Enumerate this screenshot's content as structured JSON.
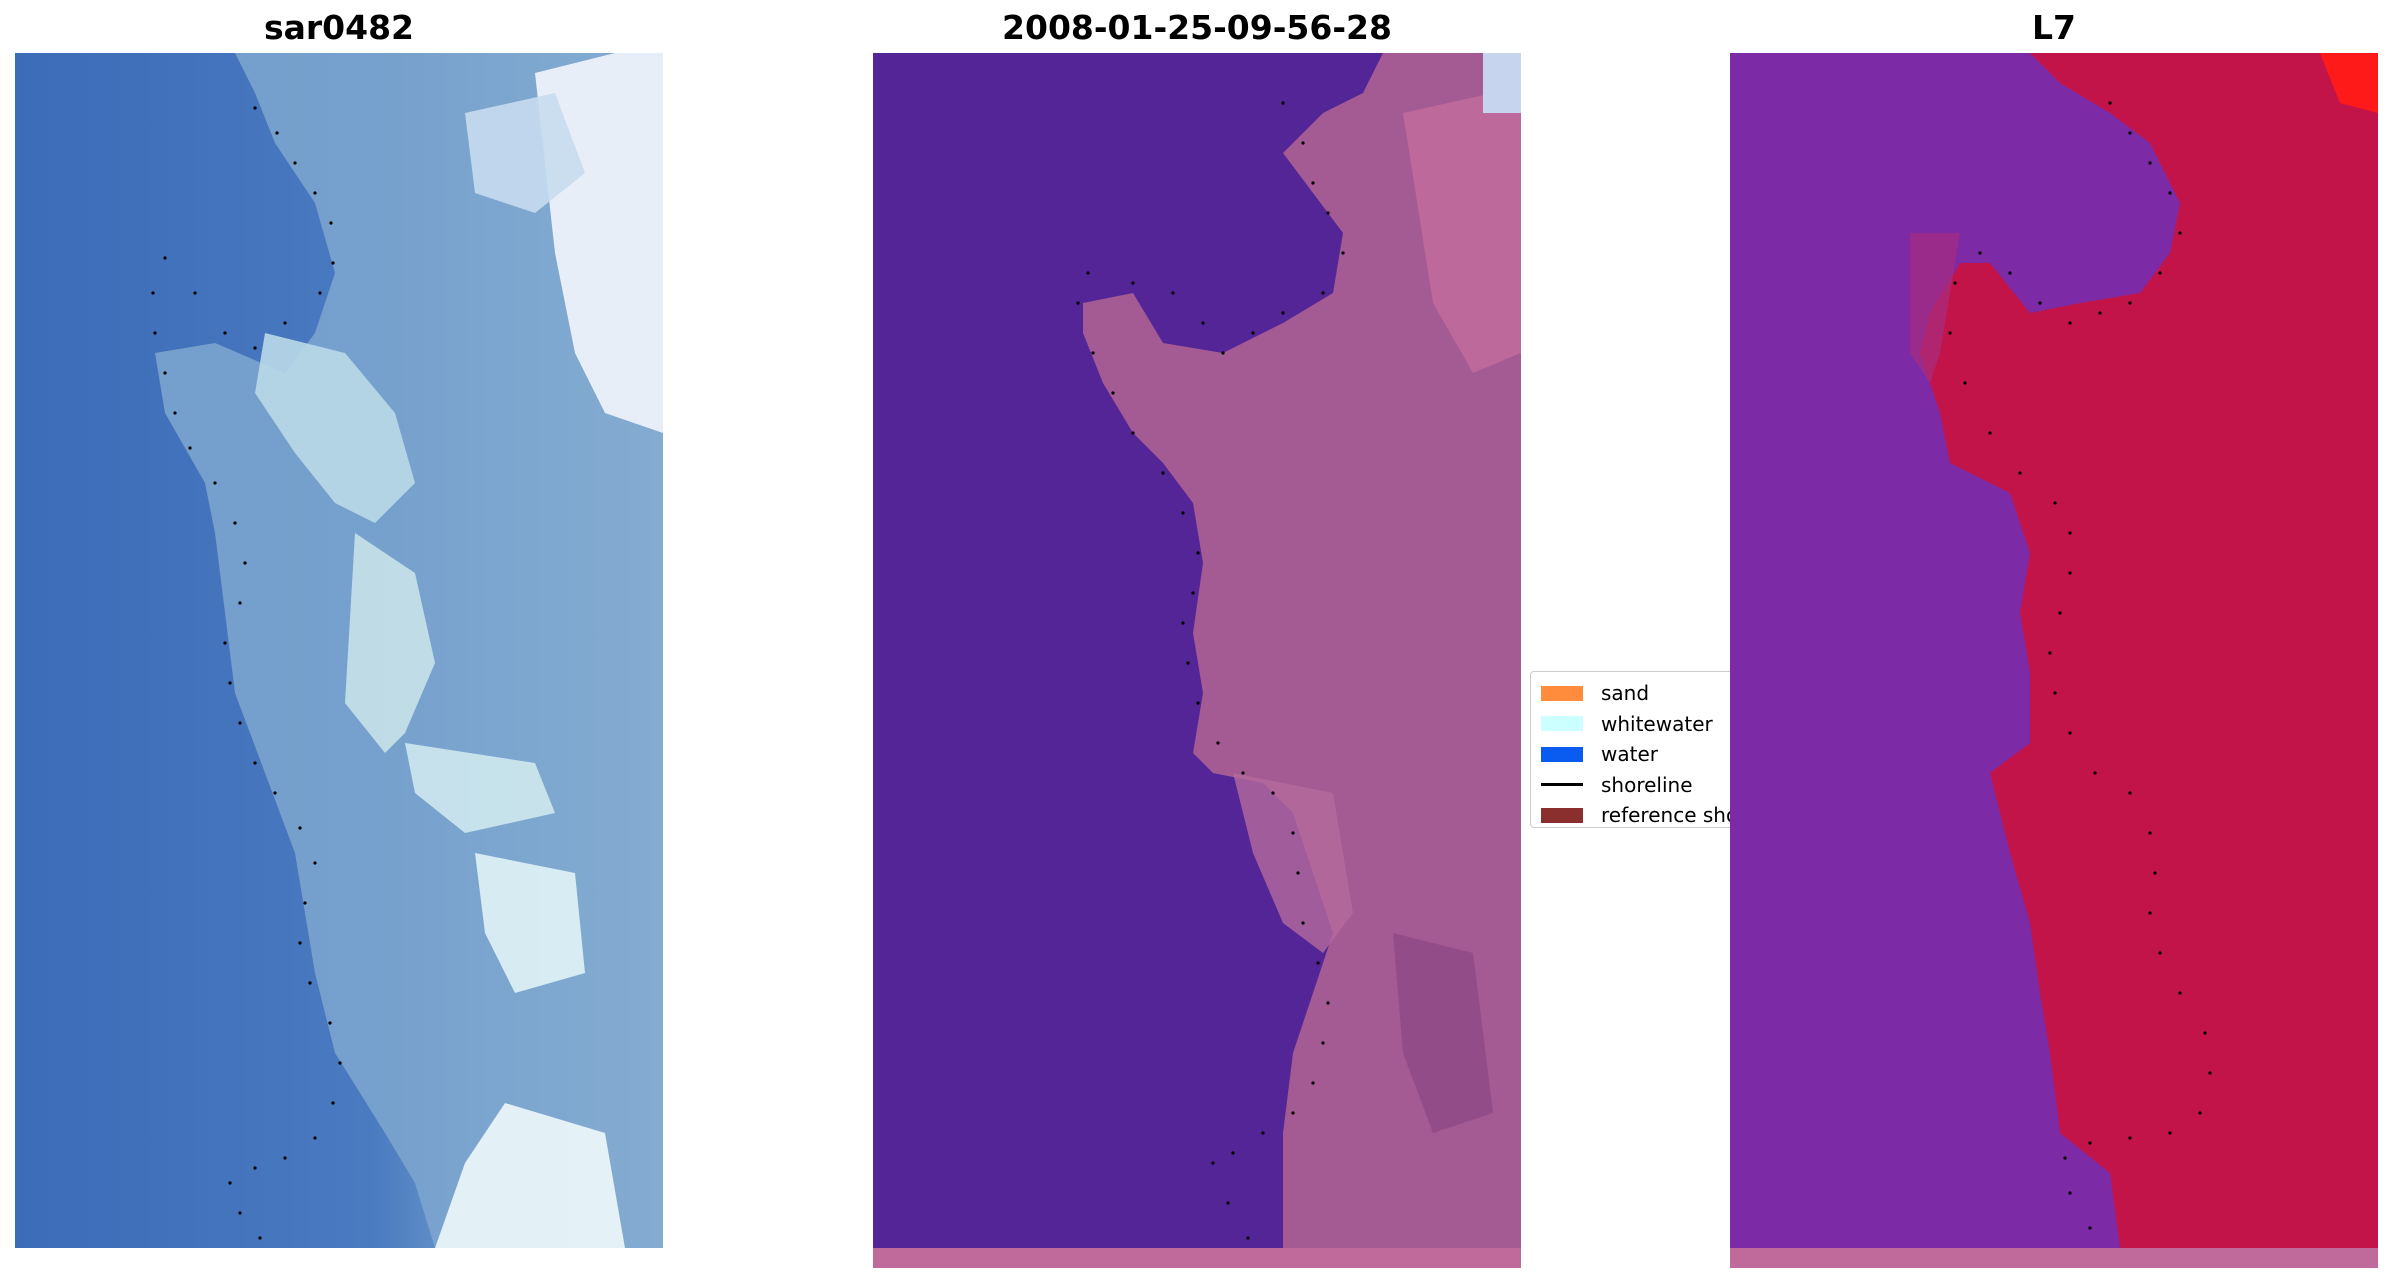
{
  "panels": [
    {
      "title": "sar0482"
    },
    {
      "title": "2008-01-25-09-56-28"
    },
    {
      "title": "L7"
    }
  ],
  "legend": {
    "items": [
      {
        "label": "sand",
        "color": "#ff8c3d",
        "kind": "patch"
      },
      {
        "label": "whitewater",
        "color": "#ccffff",
        "kind": "patch"
      },
      {
        "label": "water",
        "color": "#0a5cf0",
        "kind": "patch"
      },
      {
        "label": "shoreline",
        "color": "#000000",
        "kind": "line"
      },
      {
        "label": "reference shoreline",
        "color": "#8b2e2e",
        "kind": "patch"
      }
    ]
  },
  "colors": {
    "rgb_water": "#3c6bb8",
    "rgb_sand": "#9bbbd8",
    "rgb_whitewater": "#e4f1f4",
    "class_water": "#532596",
    "class_land": "#a45a92",
    "class_bar": "#c06a9c",
    "index_water": "#7c2aa6",
    "index_land": "#c3144a",
    "dots": "#000000"
  }
}
